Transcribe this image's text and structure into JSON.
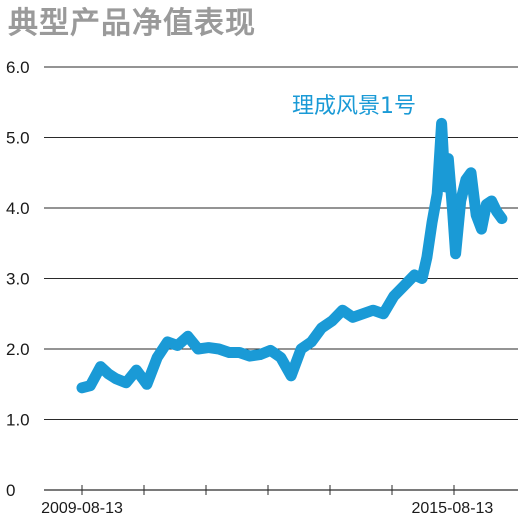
{
  "title": "典型产品净值表现",
  "chart_data": {
    "type": "line",
    "title": "典型产品净值表现",
    "xlabel": "",
    "ylabel": "",
    "ylim": [
      0,
      6
    ],
    "y_ticks": [
      "0",
      "1.0",
      "2.0",
      "3.0",
      "4.0",
      "5.0",
      "6.0"
    ],
    "x_tick_labels": [
      "2009-08-13",
      "2015-08-13"
    ],
    "x_range": [
      "2009-08-13",
      "2016-07-01"
    ],
    "grid": "horizontal",
    "series_color": "#1a9ad6",
    "series": [
      {
        "name": "理成风景1号",
        "x": [
          "2009-08-13",
          "2009-10-01",
          "2009-12-01",
          "2010-01-15",
          "2010-03-01",
          "2010-05-01",
          "2010-07-01",
          "2010-09-01",
          "2010-11-01",
          "2011-01-01",
          "2011-03-01",
          "2011-05-01",
          "2011-07-01",
          "2011-09-01",
          "2011-11-01",
          "2012-01-01",
          "2012-03-01",
          "2012-05-01",
          "2012-07-01",
          "2012-09-01",
          "2012-11-01",
          "2013-01-01",
          "2013-03-01",
          "2013-05-01",
          "2013-07-01",
          "2013-09-01",
          "2013-11-01",
          "2014-01-01",
          "2014-03-01",
          "2014-05-01",
          "2014-07-01",
          "2014-09-01",
          "2014-11-01",
          "2015-01-01",
          "2015-02-15",
          "2015-03-15",
          "2015-04-15",
          "2015-05-15",
          "2015-06-10",
          "2015-07-01",
          "2015-07-20",
          "2015-08-13",
          "2015-09-01",
          "2015-10-01",
          "2015-11-01",
          "2015-12-01",
          "2016-01-01",
          "2016-02-01",
          "2016-03-01",
          "2016-04-01",
          "2016-05-01",
          "2016-06-01"
        ],
        "values": [
          1.45,
          1.48,
          1.75,
          1.65,
          1.58,
          1.52,
          1.7,
          1.5,
          1.88,
          2.1,
          2.05,
          2.18,
          2.0,
          2.02,
          2.0,
          1.95,
          1.95,
          1.9,
          1.92,
          1.98,
          1.88,
          1.62,
          2.0,
          2.1,
          2.3,
          2.4,
          2.55,
          2.45,
          2.5,
          2.55,
          2.5,
          2.75,
          2.9,
          3.05,
          3.0,
          3.3,
          3.8,
          4.2,
          5.2,
          4.3,
          4.7,
          4.0,
          3.35,
          4.1,
          4.4,
          4.5,
          3.9,
          3.7,
          4.05,
          4.1,
          3.95,
          3.85
        ]
      }
    ]
  }
}
